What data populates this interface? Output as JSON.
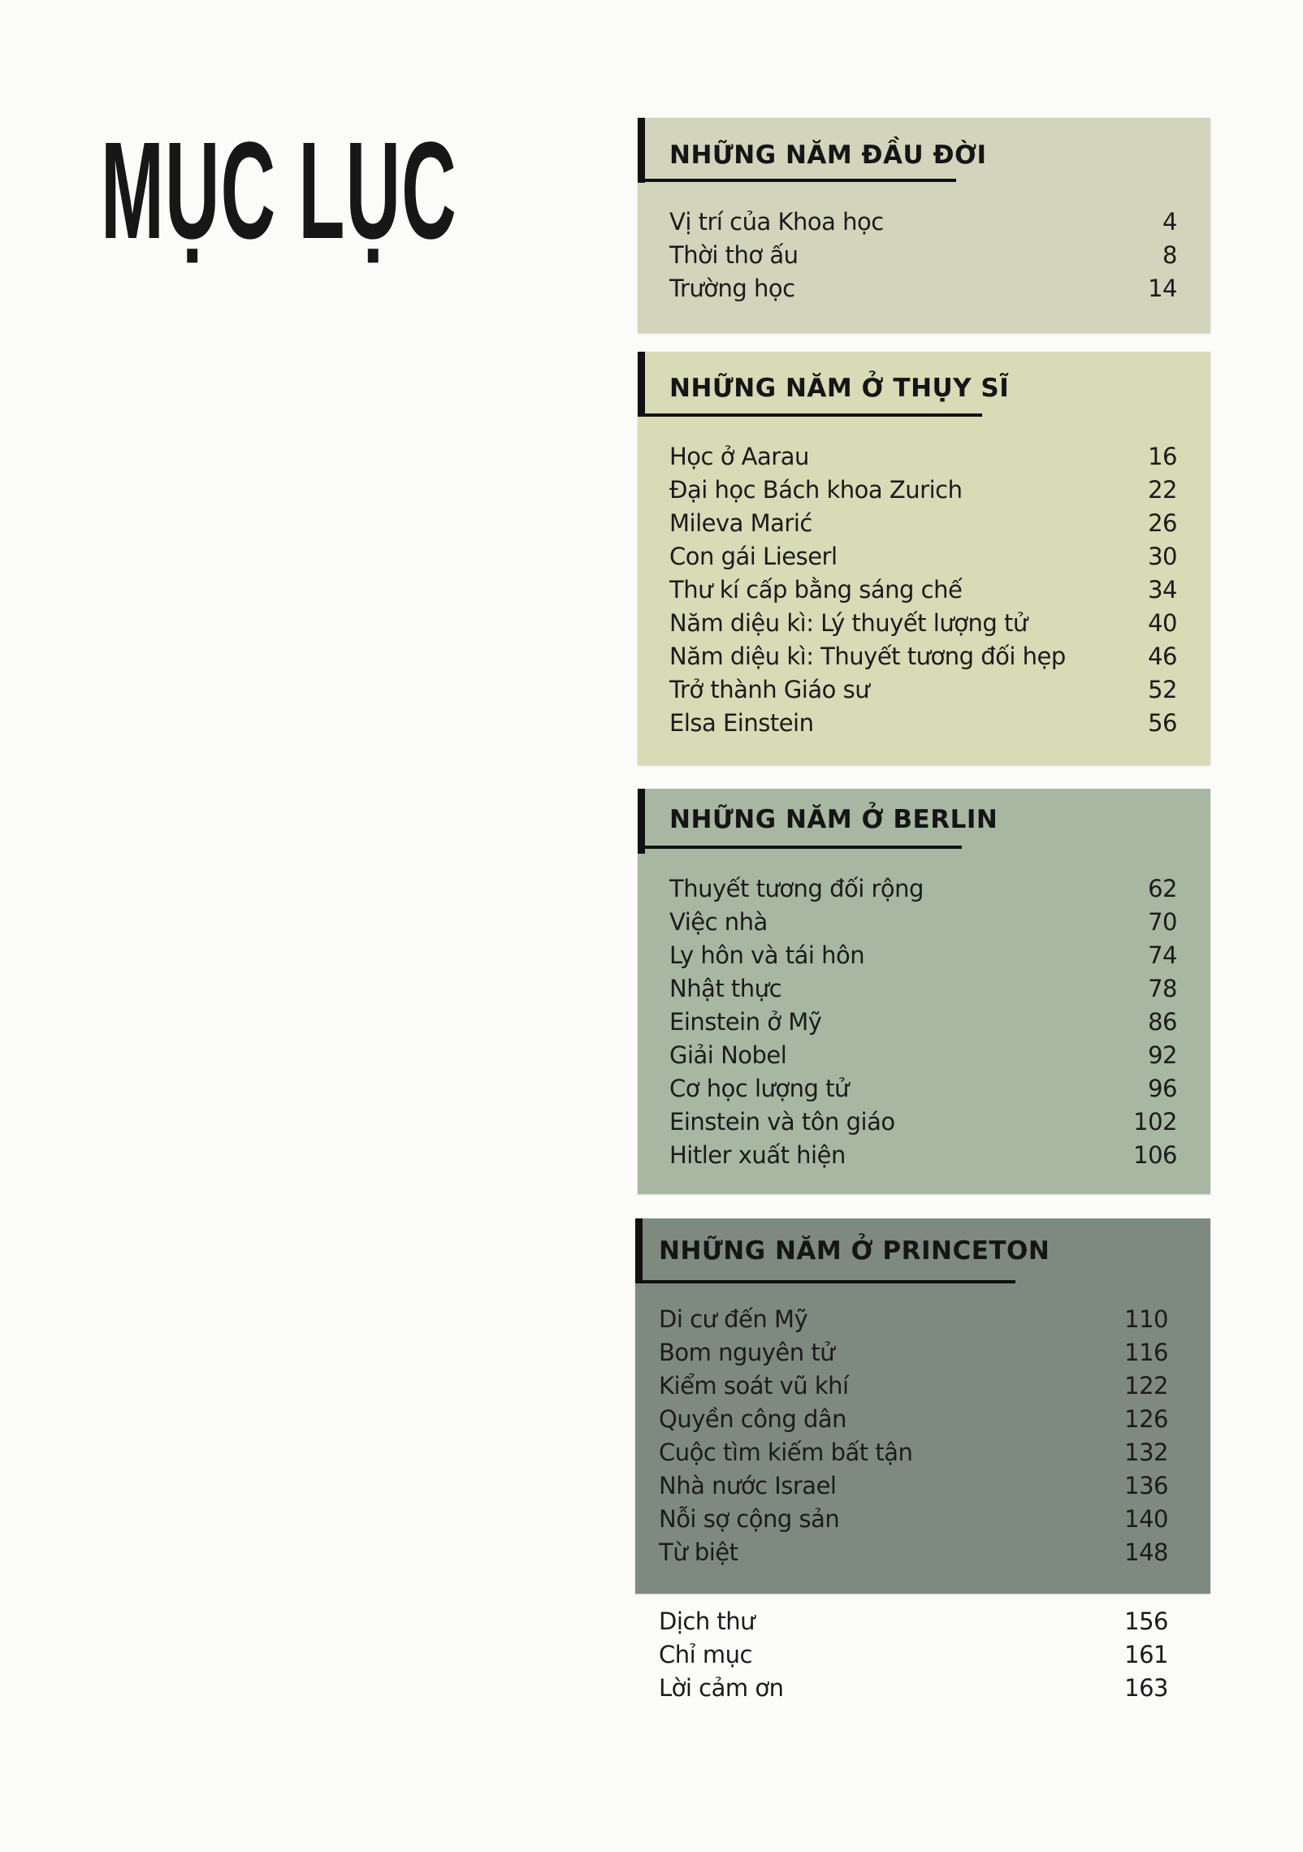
{
  "title": "MỤC LỤC",
  "colors": {
    "section1": "#d2d5bb",
    "section2": "#d7dbb6",
    "section3": "#a8b7a2",
    "section4": "#7e8a80"
  },
  "sections": [
    {
      "heading": "NHỮNG NĂM ĐẦU ĐỜI",
      "items": [
        {
          "title": "Vị trí của Khoa học",
          "page": "4"
        },
        {
          "title": "Thời thơ ấu",
          "page": "8"
        },
        {
          "title": "Trường học",
          "page": "14"
        }
      ]
    },
    {
      "heading": "NHỮNG NĂM Ở THỤY SĨ",
      "items": [
        {
          "title": "Học ở Aarau",
          "page": "16"
        },
        {
          "title": "Đại học Bách khoa Zurich",
          "page": "22"
        },
        {
          "title": "Mileva Marić",
          "page": "26"
        },
        {
          "title": "Con gái Lieserl",
          "page": "30"
        },
        {
          "title": "Thư kí cấp bằng sáng chế",
          "page": "34"
        },
        {
          "title": "Năm diệu kì: Lý thuyết lượng tử",
          "page": "40"
        },
        {
          "title": "Năm diệu kì: Thuyết tương đối hẹp",
          "page": "46"
        },
        {
          "title": "Trở thành Giáo sư",
          "page": "52"
        },
        {
          "title": "Elsa Einstein",
          "page": "56"
        }
      ]
    },
    {
      "heading": "NHỮNG NĂM Ở BERLIN",
      "items": [
        {
          "title": "Thuyết tương đối rộng",
          "page": "62"
        },
        {
          "title": "Việc nhà",
          "page": "70"
        },
        {
          "title": "Ly hôn và tái hôn",
          "page": "74"
        },
        {
          "title": "Nhật thực",
          "page": "78"
        },
        {
          "title": "Einstein ở Mỹ",
          "page": "86"
        },
        {
          "title": "Giải Nobel",
          "page": "92"
        },
        {
          "title": "Cơ học lượng tử",
          "page": "96"
        },
        {
          "title": "Einstein và tôn giáo",
          "page": "102"
        },
        {
          "title": "Hitler xuất hiện",
          "page": "106"
        }
      ]
    },
    {
      "heading": "NHỮNG NĂM Ở PRINCETON",
      "items": [
        {
          "title": "Di cư đến Mỹ",
          "page": "110"
        },
        {
          "title": "Bom nguyên tử",
          "page": "116"
        },
        {
          "title": "Kiểm soát vũ khí",
          "page": "122"
        },
        {
          "title": "Quyền công dân",
          "page": "126"
        },
        {
          "title": "Cuộc tìm kiếm bất tận",
          "page": "132"
        },
        {
          "title": "Nhà nước Israel",
          "page": "136"
        },
        {
          "title": "Nỗi sợ cộng sản",
          "page": "140"
        },
        {
          "title": "Từ biệt",
          "page": "148"
        }
      ]
    }
  ],
  "extras": [
    {
      "title": "Dịch thư",
      "page": "156"
    },
    {
      "title": "Chỉ mục",
      "page": "161"
    },
    {
      "title": "Lời cảm ơn",
      "page": "163"
    }
  ]
}
